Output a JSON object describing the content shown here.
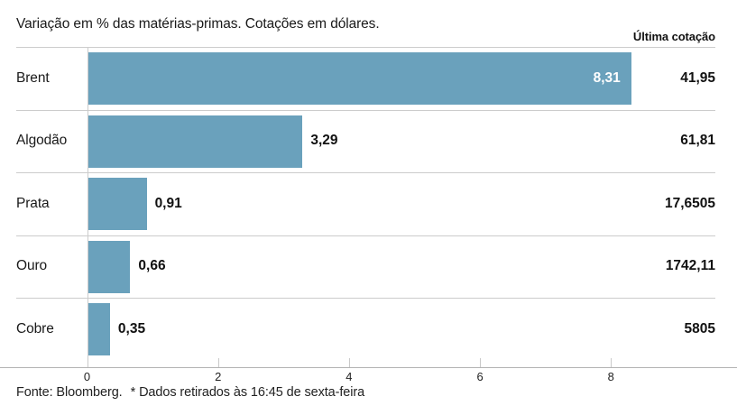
{
  "header": {
    "title": "Variação em % das matérias-primas. Cotações em dólares.",
    "right_label": "Última cotação"
  },
  "chart_data": {
    "type": "bar",
    "orientation": "horizontal",
    "title": "Variação em % das matérias-primas. Cotações em dólares.",
    "categories": [
      "Brent",
      "Algodão",
      "Prata",
      "Ouro",
      "Cobre"
    ],
    "values": [
      8.31,
      3.29,
      0.91,
      0.66,
      0.35
    ],
    "value_labels": [
      "8,31",
      "3,29",
      "0,91",
      "0,66",
      "0,35"
    ],
    "value_label_positions": [
      "inside",
      "outside",
      "outside",
      "outside",
      "outside"
    ],
    "last_quotes": [
      "41,95",
      "61,81",
      "17,6505",
      "1742,11",
      "5805"
    ],
    "quotes_column_header": "Última cotação",
    "x_ticks": [
      0,
      2,
      4,
      6,
      8
    ],
    "x_tick_labels": [
      "0",
      "2",
      "4",
      "6",
      "8"
    ],
    "xlim": [
      0,
      9.9
    ],
    "grid": false,
    "legend": false,
    "bar_color": "#6aa1bc",
    "separator_color": "#cccccc",
    "axis_color": "#b3b3b3"
  },
  "footer": {
    "source": "Fonte: Bloomberg.",
    "note": "* Dados retirados às 16:45 de sexta-feira"
  }
}
